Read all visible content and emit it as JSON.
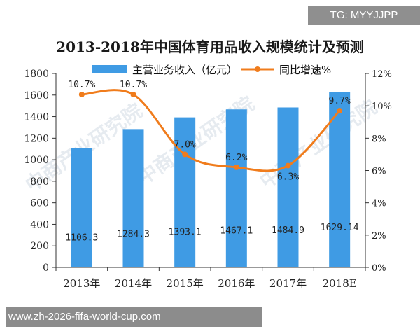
{
  "overlay": {
    "tag_text": "TG: MYYJJPP",
    "url_text": "www.zh-2026-fifa-world-cup.com",
    "watermark": "中商产业研究院"
  },
  "chart_data": {
    "type": "bar+line",
    "title": "2013-2018年中国体育用品收入规模统计及预测",
    "categories": [
      "2013年",
      "2014年",
      "2015年",
      "2016年",
      "2017年",
      "2018E"
    ],
    "series": [
      {
        "name": "主营业务收入（亿元）",
        "type": "bar",
        "axis": "left",
        "values": [
          1106.3,
          1284.3,
          1393.1,
          1467.1,
          1484.9,
          1629.14
        ],
        "labels": [
          "1106.3",
          "1284.3",
          "1393.1",
          "1467.1",
          "1484.9",
          "1629.14"
        ],
        "color": "#3f9be4"
      },
      {
        "name": "同比增速%",
        "type": "line",
        "axis": "right",
        "values": [
          10.7,
          10.7,
          7.0,
          6.2,
          6.3,
          9.7
        ],
        "labels": [
          "10.7%",
          "10.7%",
          "7.0%",
          "6.2%",
          "6.3%",
          "9.7%"
        ],
        "color": "#f07c1c"
      }
    ],
    "y_left": {
      "min": 0,
      "max": 1800,
      "ticks": [
        "0",
        "200",
        "400",
        "600",
        "800",
        "1000",
        "1200",
        "1400",
        "1600",
        "1800"
      ]
    },
    "y_right": {
      "min": 0,
      "max": 12,
      "ticks": [
        "0%",
        "2%",
        "4%",
        "6%",
        "8%",
        "10%",
        "12%"
      ]
    },
    "legend_position": "top",
    "grid": false
  }
}
